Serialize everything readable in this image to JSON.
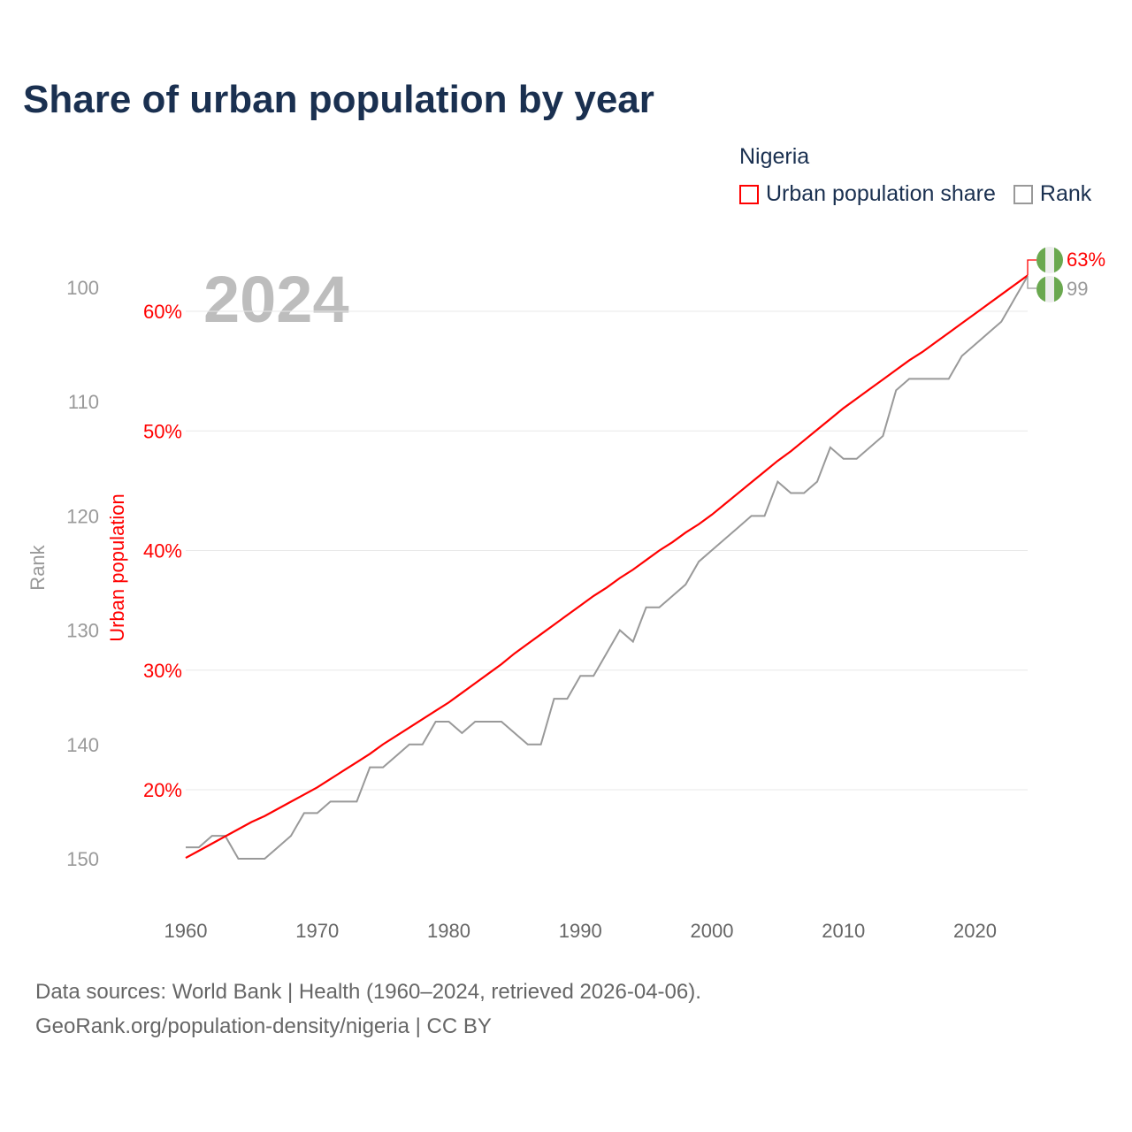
{
  "title": "Share of urban population by year",
  "legend": {
    "title": "Nigeria",
    "items": [
      {
        "label": "Urban population share",
        "color": "#ff0000"
      },
      {
        "label": "Rank",
        "color": "#999999"
      }
    ]
  },
  "current_year": "2024",
  "footer": {
    "line1": "Data sources: World Bank | Health (1960–2024, retrieved 2026-04-06).",
    "line2": "GeoRank.org/population-density/nigeria | CC BY"
  },
  "chart_data": {
    "type": "line",
    "title": "Share of urban population by year",
    "xlabel": "",
    "ylabel_left": "Rank",
    "ylabel_right": "Urban population",
    "x_ticks": [
      "1960",
      "1970",
      "1980",
      "1990",
      "2000",
      "2010",
      "2020"
    ],
    "rank_ticks": [
      "100",
      "110",
      "120",
      "130",
      "140",
      "150"
    ],
    "pct_ticks": [
      "60%",
      "50%",
      "40%",
      "30%",
      "20%"
    ],
    "xlim": [
      1960,
      2024
    ],
    "rank_lim": [
      100,
      150
    ],
    "pct_lim": [
      20,
      60
    ],
    "end_labels": {
      "pct": "63%",
      "rank": "99"
    },
    "x": [
      1960,
      1961,
      1962,
      1963,
      1964,
      1965,
      1966,
      1967,
      1968,
      1969,
      1970,
      1971,
      1972,
      1973,
      1974,
      1975,
      1976,
      1977,
      1978,
      1979,
      1980,
      1981,
      1982,
      1983,
      1984,
      1985,
      1986,
      1987,
      1988,
      1989,
      1990,
      1991,
      1992,
      1993,
      1994,
      1995,
      1996,
      1997,
      1998,
      1999,
      2000,
      2001,
      2002,
      2003,
      2004,
      2005,
      2006,
      2007,
      2008,
      2009,
      2010,
      2011,
      2012,
      2013,
      2014,
      2015,
      2016,
      2017,
      2018,
      2019,
      2020,
      2021,
      2022,
      2023,
      2024
    ],
    "series": [
      {
        "name": "Urban population share",
        "color": "#ff0000",
        "values": [
          14.3,
          14.9,
          15.5,
          16.1,
          16.7,
          17.3,
          17.8,
          18.4,
          19.0,
          19.6,
          20.2,
          20.9,
          21.6,
          22.3,
          23.0,
          23.8,
          24.5,
          25.2,
          25.9,
          26.6,
          27.3,
          28.1,
          28.9,
          29.7,
          30.5,
          31.4,
          32.2,
          33.0,
          33.8,
          34.6,
          35.4,
          36.2,
          36.9,
          37.7,
          38.4,
          39.2,
          40.0,
          40.7,
          41.5,
          42.2,
          43.0,
          43.9,
          44.8,
          45.7,
          46.6,
          47.5,
          48.3,
          49.2,
          50.1,
          51.0,
          51.9,
          52.7,
          53.5,
          54.3,
          55.1,
          55.9,
          56.6,
          57.4,
          58.2,
          59.0,
          59.8,
          60.6,
          61.4,
          62.2,
          63.0
        ]
      },
      {
        "name": "Rank",
        "color": "#999999",
        "values": [
          149,
          149,
          148,
          148,
          150,
          150,
          150,
          149,
          148,
          146,
          146,
          145,
          145,
          145,
          142,
          142,
          141,
          140,
          140,
          138,
          138,
          139,
          138,
          138,
          138,
          139,
          140,
          140,
          136,
          136,
          134,
          134,
          132,
          130,
          131,
          128,
          128,
          127,
          126,
          124,
          123,
          122,
          121,
          120,
          120,
          117,
          118,
          118,
          117,
          114,
          115,
          115,
          114,
          113,
          109,
          108,
          108,
          108,
          108,
          106,
          105,
          104,
          103,
          101,
          99
        ]
      }
    ]
  }
}
